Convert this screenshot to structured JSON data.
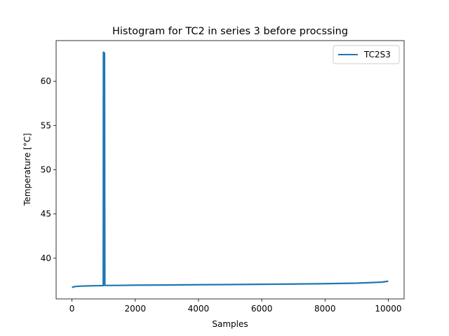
{
  "chart_data": {
    "type": "line",
    "title": "Histogram for TC2 in series 3 before procssing",
    "xlabel": "Samples",
    "ylabel": "Temperature [°C]",
    "xlim": [
      -500,
      10500
    ],
    "ylim": [
      35.4,
      64.6
    ],
    "xticks": [
      0,
      2000,
      4000,
      6000,
      8000,
      10000
    ],
    "yticks": [
      40,
      45,
      50,
      55,
      60
    ],
    "legend_placement": "top-right",
    "grid": false,
    "series": [
      {
        "name": "TC2S3",
        "color": "#1f77b4",
        "x": [
          0,
          100,
          300,
          600,
          900,
          990,
          995,
          1000,
          1005,
          1010,
          1015,
          1020,
          1025,
          1030,
          1040,
          1500,
          2000,
          3000,
          4000,
          5000,
          6000,
          7000,
          8000,
          9000,
          9500,
          9800,
          10000
        ],
        "y": [
          36.7,
          36.8,
          36.85,
          36.88,
          36.9,
          36.9,
          63.2,
          63.3,
          37.0,
          63.2,
          37.0,
          63.0,
          37.0,
          63.2,
          36.92,
          36.93,
          36.95,
          36.97,
          37.0,
          37.02,
          37.05,
          37.08,
          37.12,
          37.18,
          37.25,
          37.3,
          37.4
        ]
      }
    ]
  }
}
